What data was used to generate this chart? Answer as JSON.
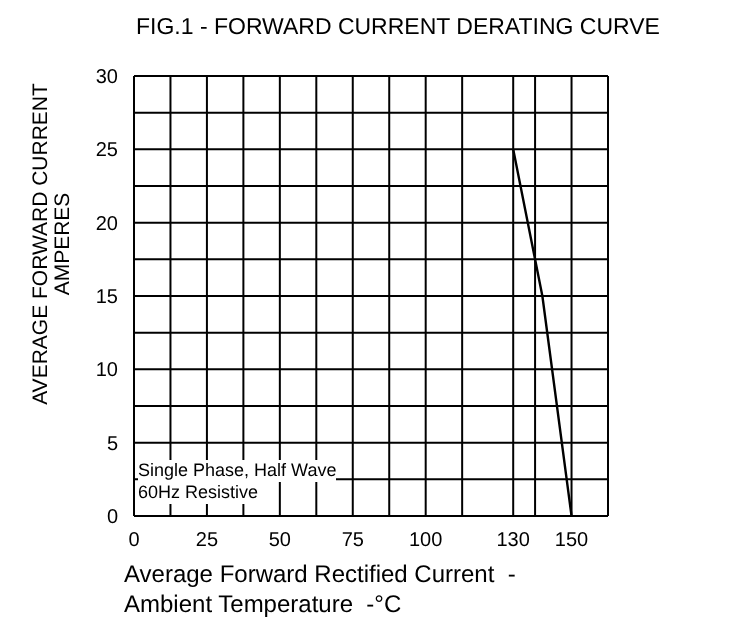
{
  "chart_data": {
    "type": "line",
    "title": "FIG.1 - FORWARD CURRENT DERATING CURVE",
    "xlabel": "Average Forward Rectified Current  -\nAmbient Temperature  -°C",
    "ylabel": "AVERAGE FORWARD CURRENT\nAMPERES",
    "x": [
      130,
      140,
      150
    ],
    "series": [
      {
        "color": "#000000",
        "values": [
          25,
          15,
          0
        ]
      }
    ],
    "xlim": [
      0,
      162.5
    ],
    "xticks": [
      0,
      {
        "value": 12.5,
        "label": null
      },
      25,
      {
        "value": 37.5,
        "label": null
      },
      50,
      {
        "value": 62.5,
        "label": null
      },
      75,
      {
        "value": 87.5,
        "label": null
      },
      100,
      {
        "value": 112.5,
        "label": null
      },
      130,
      {
        "value": 137.5,
        "label": null
      },
      150,
      {
        "value": 162.5,
        "label": null
      }
    ],
    "ylim": [
      0,
      30
    ],
    "yticks": [
      0,
      {
        "value": 2.5,
        "label": null
      },
      5,
      {
        "value": 7.5,
        "label": null
      },
      10,
      {
        "value": 12.5,
        "label": null
      },
      15,
      {
        "value": 17.5,
        "label": null
      },
      20,
      {
        "value": 22.5,
        "label": null
      },
      25,
      {
        "value": 27.5,
        "label": null
      },
      30
    ],
    "grid": true,
    "marker": "none",
    "line_style": "solid",
    "legend": false,
    "annotations": [
      "Single Phase, Half Wave",
      "60Hz Resistive"
    ]
  }
}
